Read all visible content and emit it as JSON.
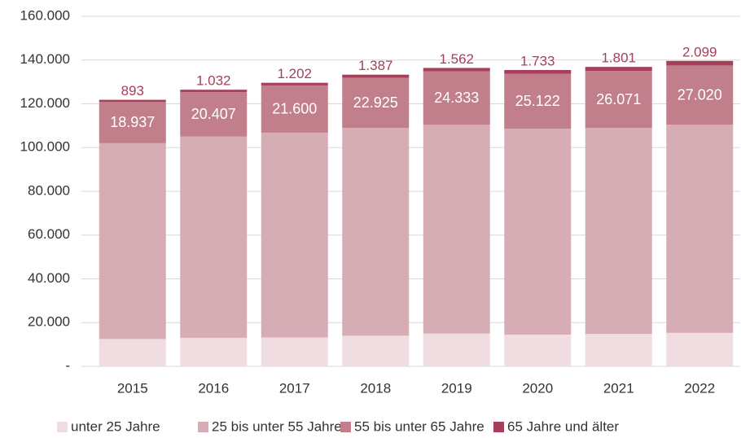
{
  "chart_data": {
    "type": "stacked_bar",
    "categories": [
      "2015",
      "2016",
      "2017",
      "2018",
      "2019",
      "2020",
      "2021",
      "2022"
    ],
    "series": [
      {
        "name": "unter 25 Jahre",
        "color": "#f0dde1",
        "values": [
          12500,
          13000,
          13200,
          14000,
          15000,
          14500,
          14800,
          15300
        ]
      },
      {
        "name": "25 bis unter 55 Jahre",
        "color": "#d7adb5",
        "values": [
          89500,
          92000,
          93600,
          95000,
          95500,
          94100,
          94200,
          95200
        ]
      },
      {
        "name": "55 bis unter 65 Jahre",
        "color": "#c17f8c",
        "values": [
          18937,
          20407,
          21600,
          22925,
          24333,
          25122,
          26071,
          27020
        ],
        "value_labels": [
          "18.937",
          "20.407",
          "21.600",
          "22.925",
          "24.333",
          "25.122",
          "26.071",
          "27.020"
        ]
      },
      {
        "name": "65 Jahre und älter",
        "color": "#a63f5a",
        "values": [
          893,
          1032,
          1202,
          1387,
          1562,
          1733,
          1801,
          2099
        ],
        "value_labels": [
          "893",
          "1.032",
          "1.202",
          "1.387",
          "1.562",
          "1.733",
          "1.801",
          "2.099"
        ]
      }
    ],
    "ylim": [
      0,
      160000
    ],
    "yticks": [
      {
        "value": 0,
        "label": "-"
      },
      {
        "value": 20000,
        "label": "20.000"
      },
      {
        "value": 40000,
        "label": "40.000"
      },
      {
        "value": 60000,
        "label": "60.000"
      },
      {
        "value": 80000,
        "label": "80.000"
      },
      {
        "value": 100000,
        "label": "100.000"
      },
      {
        "value": 120000,
        "label": "120.000"
      },
      {
        "value": 140000,
        "label": "140.000"
      },
      {
        "value": 160000,
        "label": "160.000"
      }
    ],
    "grid": true,
    "legend": "bottom"
  }
}
